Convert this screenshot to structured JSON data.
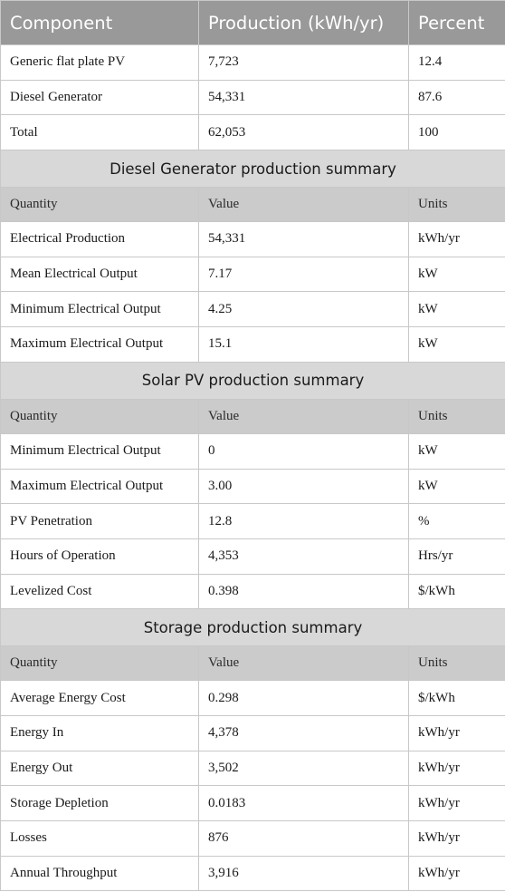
{
  "header": [
    "Component",
    "Production (kWh/yr)",
    "Percent"
  ],
  "components": [
    [
      "Generic flat plate PV",
      "7,723",
      "12.4"
    ],
    [
      "Diesel Generator",
      "54,331",
      "87.6"
    ],
    [
      "Total",
      "62,053",
      "100"
    ]
  ],
  "sub_header": [
    "Quantity",
    "Value",
    "Units"
  ],
  "diesel": {
    "title": "Diesel Generator production summary",
    "rows": [
      [
        "Electrical Production",
        "54,331",
        "kWh/yr"
      ],
      [
        "Mean Electrical Output",
        "7.17",
        "kW"
      ],
      [
        "Minimum Electrical Output",
        "4.25",
        "kW"
      ],
      [
        "Maximum Electrical Output",
        "15.1",
        "kW"
      ]
    ]
  },
  "solar": {
    "title": "Solar PV production summary",
    "rows": [
      [
        "Minimum Electrical Output",
        "0",
        "kW"
      ],
      [
        "Maximum Electrical Output",
        "3.00",
        "kW"
      ],
      [
        "PV Penetration",
        "12.8",
        "%"
      ],
      [
        "Hours of Operation",
        "4,353",
        "Hrs/yr"
      ],
      [
        "Levelized Cost",
        "0.398",
        "$/kWh"
      ]
    ]
  },
  "storage": {
    "title": "Storage production summary",
    "rows": [
      [
        "Average Energy Cost",
        "0.298",
        "$/kWh"
      ],
      [
        "Energy In",
        "4,378",
        "kWh/yr"
      ],
      [
        "Energy Out",
        "3,502",
        "kWh/yr"
      ],
      [
        "Storage Depletion",
        "0.0183",
        "kWh/yr"
      ],
      [
        "Losses",
        "876",
        "kWh/yr"
      ],
      [
        "Annual Throughput",
        "3,916",
        "kWh/yr"
      ]
    ]
  }
}
